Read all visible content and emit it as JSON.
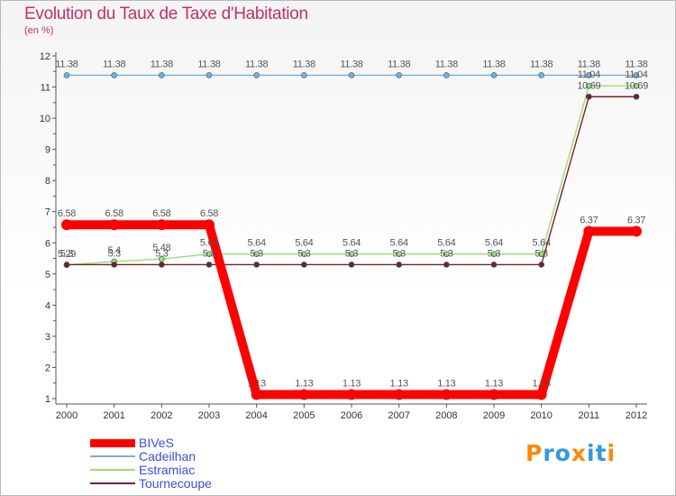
{
  "chart_data": {
    "type": "line",
    "title": "Evolution du Taux de Taxe d'Habitation",
    "subtitle": "(en %)",
    "xlabel": "",
    "ylabel": "",
    "x": [
      "2000",
      "2001",
      "2002",
      "2003",
      "2004",
      "2005",
      "2006",
      "2007",
      "2008",
      "2009",
      "2010",
      "2011",
      "2012"
    ],
    "ylim": [
      1,
      12
    ],
    "yticks": [
      1,
      2,
      3,
      4,
      5,
      6,
      7,
      8,
      9,
      10,
      11,
      12
    ],
    "grid": false,
    "legend_position": "bottom-left",
    "series": [
      {
        "name": "BIVeS",
        "color": "#ff0000",
        "values": [
          6.58,
          6.58,
          6.58,
          6.58,
          1.13,
          1.13,
          1.13,
          1.13,
          1.13,
          1.13,
          1.13,
          6.37,
          6.37
        ],
        "labels": [
          "6.58",
          "6.58",
          "6.58",
          "6.58",
          "1.13",
          "1.13",
          "1.13",
          "1.13",
          "1.13",
          "1.13",
          "1.13",
          "6.37",
          "6.37"
        ]
      },
      {
        "name": "Cadeilhan",
        "color": "#7aafd4",
        "values": [
          11.38,
          11.38,
          11.38,
          11.38,
          11.38,
          11.38,
          11.38,
          11.38,
          11.38,
          11.38,
          11.38,
          11.38,
          11.38
        ],
        "labels": [
          "11.38",
          "11.38",
          "11.38",
          "11.38",
          "11.38",
          "11.38",
          "11.38",
          "11.38",
          "11.38",
          "11.38",
          "11.38",
          "11.38",
          "11.38"
        ]
      },
      {
        "name": "Estramiac",
        "color": "#99dd77",
        "values": [
          5.29,
          5.4,
          5.48,
          5.64,
          5.64,
          5.64,
          5.64,
          5.64,
          5.64,
          5.64,
          5.64,
          11.04,
          11.04
        ],
        "labels": [
          "5.29",
          "5.4",
          "5.48",
          "5.64",
          "5.64",
          "5.64",
          "5.64",
          "5.64",
          "5.64",
          "5.64",
          "5.64",
          "11.04",
          "11.04"
        ]
      },
      {
        "name": "Tournecoupe",
        "color": "#772222",
        "values": [
          5.3,
          5.3,
          5.3,
          5.3,
          5.3,
          5.3,
          5.3,
          5.3,
          5.3,
          5.3,
          5.3,
          10.69,
          10.69
        ],
        "labels": [
          "5.3",
          "5.3",
          "5.3",
          "5.3",
          "5.3",
          "5.3",
          "5.3",
          "5.3",
          "5.3",
          "5.3",
          "5.3",
          "10.69",
          "10.69"
        ]
      }
    ]
  },
  "logo": {
    "text": "Proxiti",
    "letters": [
      "P",
      "r",
      "o",
      "x",
      "i",
      "t",
      "i"
    ],
    "colors": [
      "#ff8800",
      "#3399dd",
      "#3399dd",
      "#ff8800",
      "#3399dd",
      "#3399dd",
      "#ff8800"
    ]
  }
}
